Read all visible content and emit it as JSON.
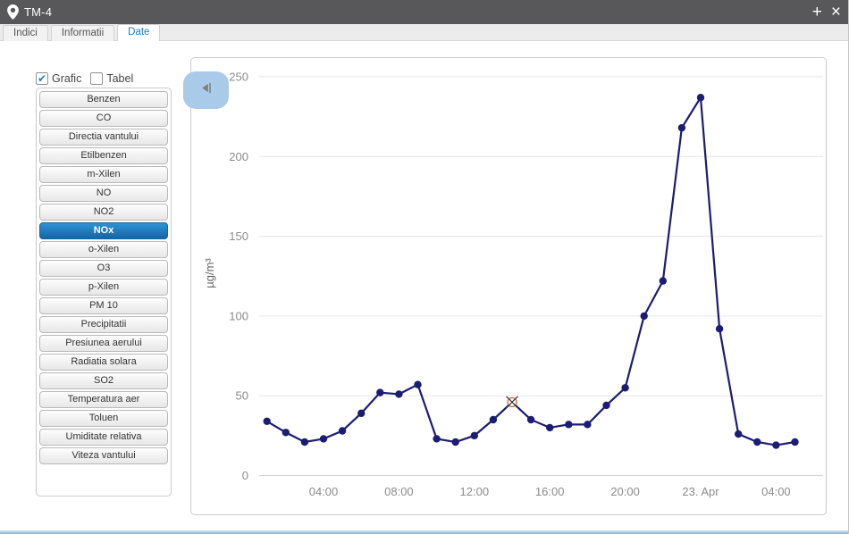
{
  "window": {
    "title": "TM-4",
    "controls": {
      "add": "+",
      "close": "×"
    }
  },
  "tabs": [
    {
      "label": "Indici",
      "active": false
    },
    {
      "label": "Informatii",
      "active": false
    },
    {
      "label": "Date",
      "active": true
    }
  ],
  "view_toggles": [
    {
      "label": "Grafic",
      "checked": true
    },
    {
      "label": "Tabel",
      "checked": false
    }
  ],
  "parameters": {
    "selected": "NOx",
    "items": [
      "Benzen",
      "CO",
      "Directia vantului",
      "Etilbenzen",
      "m-Xilen",
      "NO",
      "NO2",
      "NOx",
      "o-Xilen",
      "O3",
      "p-Xilen",
      "PM 10",
      "Precipitatii",
      "Presiunea aerului",
      "Radiatia solara",
      "SO2",
      "Temperatura aer",
      "Toluen",
      "Umiditate relativa",
      "Viteza vantului"
    ]
  },
  "chart_data": {
    "type": "line",
    "title": "",
    "ylabel": "µg/m³",
    "ylim": [
      0,
      250
    ],
    "yticks": [
      0,
      50,
      100,
      150,
      200,
      250
    ],
    "grid": true,
    "xticks": [
      {
        "hour": 3,
        "label": "04:00"
      },
      {
        "hour": 7,
        "label": "08:00"
      },
      {
        "hour": 11,
        "label": "12:00"
      },
      {
        "hour": 15,
        "label": "16:00"
      },
      {
        "hour": 19,
        "label": "20:00"
      },
      {
        "hour": 23,
        "label": "23. Apr"
      },
      {
        "hour": 27,
        "label": "04:00"
      }
    ],
    "series": [
      {
        "name": "NOx",
        "unit": "µg/m³",
        "start_time": "01:00",
        "interval_hours": 1,
        "values": [
          34,
          27,
          21,
          23,
          28,
          39,
          52,
          51,
          57,
          23,
          21,
          25,
          35,
          46,
          35,
          30,
          32,
          32,
          44,
          55,
          100,
          122,
          218,
          237,
          92,
          26,
          21,
          19,
          21
        ],
        "flagged_index": 13
      }
    ],
    "line_color": "#1c1c73",
    "tick_color": "#8c8c8c",
    "grid_color": "#e6e6e6",
    "baseline_color": "#d2d2d2",
    "flag_marker_color": "#cc6a4a"
  }
}
